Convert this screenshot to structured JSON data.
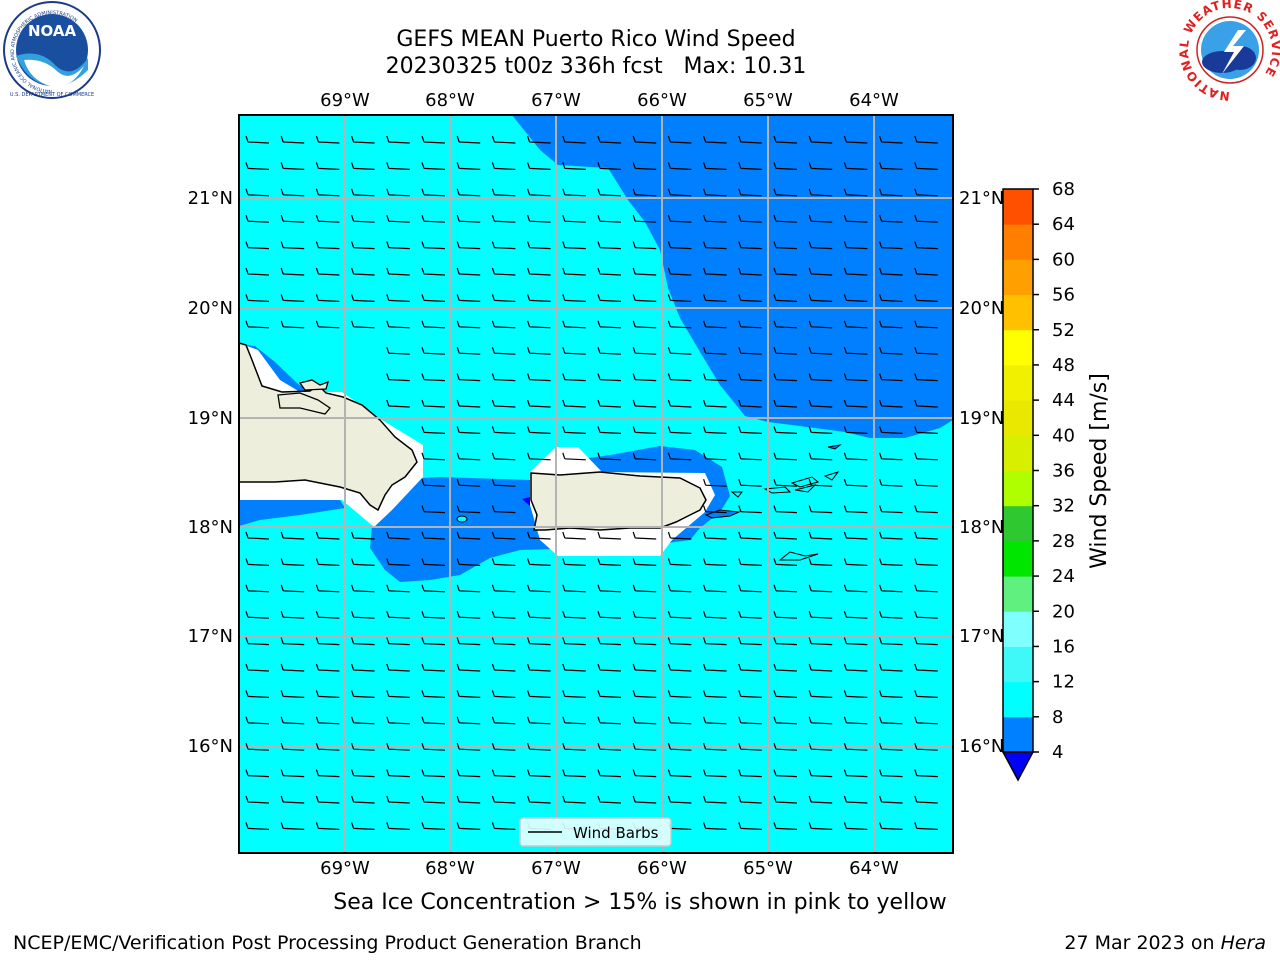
{
  "title_line1": "GEFS MEAN Puerto Rico Wind Speed",
  "title_line2": "20230325 t00z 336h fcst   Max: 10.31",
  "logos": {
    "noaa_text": "NOAA",
    "noaa_ring_text": "NATIONAL OCEANIC AND ATMOSPHERIC ADMINISTRATION",
    "noaa_ring_bottom": "U.S. DEPARTMENT OF COMMERCE",
    "nws_ring_text": "NATIONAL WEATHER SERVICE"
  },
  "map": {
    "lon_labels": [
      "69°W",
      "68°W",
      "67°W",
      "66°W",
      "65°W",
      "64°W"
    ],
    "lat_labels": [
      "21°N",
      "20°N",
      "19°N",
      "18°N",
      "17°N",
      "16°N"
    ],
    "legend_label": "Wind Barbs",
    "colors": {
      "ocean": "#00ffff",
      "calmer_zone": "#0080ff",
      "land": "#eeeedd",
      "masked": "#ffffff"
    }
  },
  "colorbar": {
    "label": "Wind Speed [m/s]",
    "ticks": [
      "4",
      "8",
      "12",
      "16",
      "20",
      "24",
      "28",
      "32",
      "36",
      "40",
      "44",
      "48",
      "52",
      "56",
      "60",
      "64",
      "68"
    ],
    "colors": [
      "#0080ff",
      "#00ffff",
      "#3ff8f8",
      "#80ffff",
      "#5ff080",
      "#00e600",
      "#30c830",
      "#b0ff00",
      "#d8f000",
      "#e8e800",
      "#f0f000",
      "#ffff00",
      "#ffc000",
      "#ffa000",
      "#ff8000",
      "#ff5000",
      "#ff2000",
      "#ff0000"
    ],
    "extend_color": "#0000ff"
  },
  "footer": {
    "caption": "Sea Ice Concentration > 15% is shown in pink to yellow",
    "left": "NCEP/EMC/Verification Post Processing Product Generation Branch",
    "right_date": "27 Mar 2023 on ",
    "right_system": "Hera"
  }
}
